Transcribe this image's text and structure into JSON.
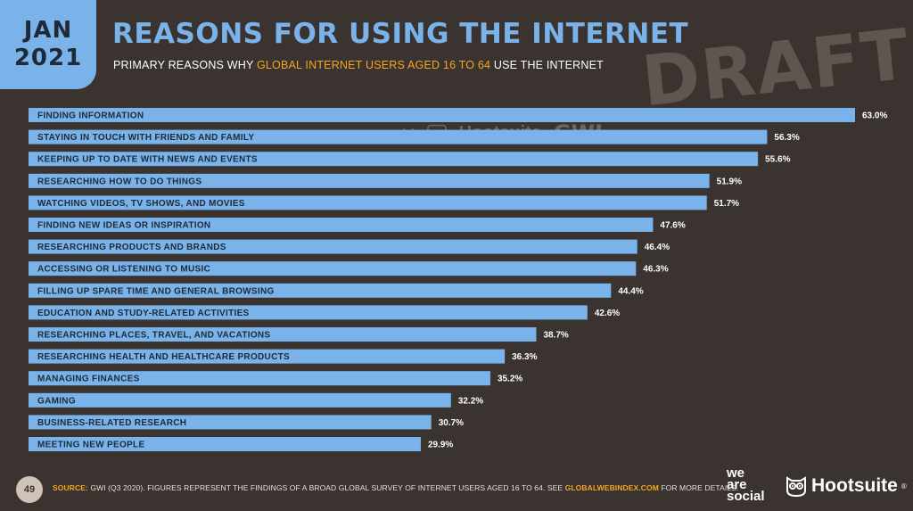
{
  "header": {
    "month": "JAN",
    "year": "2021",
    "title": "REASONS FOR USING THE INTERNET",
    "subtitle_before": "PRIMARY REASONS WHY ",
    "subtitle_highlight": "GLOBAL INTERNET USERS AGED 16 TO 64",
    "subtitle_after": " USE THE INTERNET"
  },
  "watermark": {
    "draft": "DRAFT",
    "brands": [
      "we are social",
      "Hootsuite",
      "GWI."
    ]
  },
  "chart_data": {
    "type": "bar",
    "orientation": "horizontal",
    "categories": [
      "FINDING INFORMATION",
      "STAYING IN TOUCH WITH FRIENDS AND FAMILY",
      "KEEPING UP TO DATE WITH NEWS AND EVENTS",
      "RESEARCHING HOW TO DO THINGS",
      "WATCHING VIDEOS, TV SHOWS, AND MOVIES",
      "FINDING NEW IDEAS OR INSPIRATION",
      "RESEARCHING PRODUCTS AND BRANDS",
      "ACCESSING OR LISTENING TO MUSIC",
      "FILLING UP SPARE TIME AND GENERAL BROWSING",
      "EDUCATION AND STUDY-RELATED ACTIVITIES",
      "RESEARCHING PLACES, TRAVEL, AND VACATIONS",
      "RESEARCHING HEALTH AND HEALTHCARE PRODUCTS",
      "MANAGING FINANCES",
      "GAMING",
      "BUSINESS-RELATED RESEARCH",
      "MEETING NEW PEOPLE"
    ],
    "values": [
      63.0,
      56.3,
      55.6,
      51.9,
      51.7,
      47.6,
      46.4,
      46.3,
      44.4,
      42.6,
      38.7,
      36.3,
      35.2,
      32.2,
      30.7,
      29.9
    ],
    "value_labels": [
      "63.0%",
      "56.3%",
      "55.6%",
      "51.9%",
      "51.7%",
      "47.6%",
      "46.4%",
      "46.3%",
      "44.4%",
      "42.6%",
      "38.7%",
      "36.3%",
      "35.2%",
      "32.2%",
      "30.7%",
      "29.9%"
    ],
    "bar_color": "#79b3ea",
    "grid": false
  },
  "footer": {
    "page_number": "49",
    "source_label": "SOURCE:",
    "source_text": " GWI (Q3 2020). FIGURES REPRESENT THE FINDINGS OF A BROAD GLOBAL SURVEY OF INTERNET USERS AGED 16 TO 64. SEE ",
    "source_link": "GLOBALWEBINDEX.COM",
    "source_after": " FOR MORE DETAILS.",
    "logo_was_lines": [
      "we",
      "are",
      "social"
    ],
    "logo_hootsuite": "Hootsuite",
    "logo_hootsuite_mark": "®"
  },
  "colors": {
    "background": "#3a332f",
    "accent": "#79b3ea",
    "highlight": "#f5a623"
  }
}
